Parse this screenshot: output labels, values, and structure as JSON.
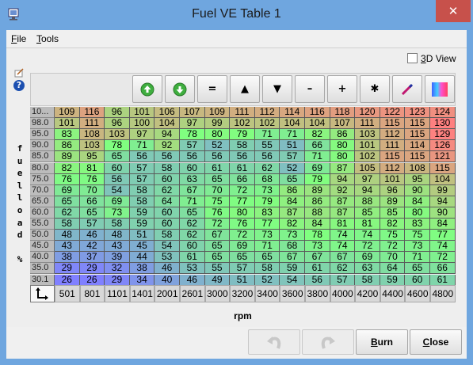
{
  "window": {
    "title": "Fuel VE Table 1",
    "close_glyph": "✕"
  },
  "menu": [
    {
      "accel": "F",
      "rest": "ile"
    },
    {
      "accel": "T",
      "rest": "ools"
    }
  ],
  "view3d": {
    "accel": "3",
    "rest": "D View",
    "checked": false
  },
  "help_glyph": "?",
  "toolbar": {
    "equals": "=",
    "up": "▲",
    "down": "▼",
    "minus": "–",
    "plus": "+",
    "multiply": "✱"
  },
  "axis": {
    "y_label": [
      "f",
      "u",
      "e",
      "l",
      "l",
      "o",
      "a",
      "d",
      "",
      "%"
    ],
    "x_label": "rpm",
    "rows": [
      "10...",
      "98.0",
      "95.0",
      "90.0",
      "85.0",
      "80.0",
      "75.0",
      "70.0",
      "65.0",
      "60.0",
      "55.0",
      "50.0",
      "45.0",
      "40.0",
      "35.0",
      "30.1"
    ],
    "cols": [
      "501",
      "801",
      "1101",
      "1401",
      "2001",
      "2601",
      "3000",
      "3200",
      "3400",
      "3600",
      "3800",
      "4000",
      "4200",
      "4400",
      "4600",
      "4800"
    ]
  },
  "table": [
    [
      109,
      116,
      96,
      101,
      106,
      107,
      109,
      111,
      112,
      114,
      116,
      118,
      120,
      122,
      123,
      124
    ],
    [
      101,
      111,
      96,
      100,
      104,
      97,
      99,
      102,
      102,
      104,
      104,
      107,
      111,
      115,
      115,
      130
    ],
    [
      83,
      108,
      103,
      97,
      94,
      78,
      80,
      79,
      71,
      71,
      82,
      86,
      103,
      112,
      115,
      129
    ],
    [
      86,
      103,
      78,
      71,
      92,
      57,
      52,
      58,
      55,
      51,
      66,
      80,
      101,
      111,
      114,
      126
    ],
    [
      89,
      95,
      65,
      56,
      56,
      56,
      56,
      56,
      56,
      57,
      71,
      80,
      102,
      115,
      115,
      121
    ],
    [
      82,
      81,
      60,
      57,
      58,
      60,
      61,
      61,
      62,
      52,
      69,
      87,
      105,
      112,
      108,
      115
    ],
    [
      76,
      76,
      56,
      57,
      60,
      63,
      65,
      66,
      68,
      65,
      79,
      94,
      97,
      101,
      95,
      104
    ],
    [
      69,
      70,
      54,
      58,
      62,
      67,
      70,
      72,
      73,
      86,
      89,
      92,
      94,
      96,
      90,
      99
    ],
    [
      65,
      66,
      69,
      58,
      64,
      71,
      75,
      77,
      79,
      84,
      86,
      87,
      88,
      89,
      84,
      94
    ],
    [
      62,
      65,
      73,
      59,
      60,
      65,
      76,
      80,
      83,
      87,
      88,
      87,
      85,
      85,
      80,
      90
    ],
    [
      58,
      57,
      58,
      59,
      60,
      62,
      72,
      76,
      77,
      82,
      84,
      81,
      81,
      82,
      83,
      84
    ],
    [
      48,
      46,
      48,
      51,
      58,
      62,
      67,
      72,
      73,
      73,
      78,
      74,
      74,
      75,
      75,
      77
    ],
    [
      43,
      42,
      43,
      45,
      54,
      60,
      65,
      69,
      71,
      68,
      73,
      74,
      72,
      72,
      73,
      74
    ],
    [
      38,
      37,
      39,
      44,
      53,
      61,
      65,
      65,
      65,
      67,
      67,
      67,
      69,
      70,
      71,
      72
    ],
    [
      29,
      29,
      32,
      38,
      46,
      53,
      55,
      57,
      58,
      59,
      61,
      62,
      63,
      64,
      65,
      66
    ],
    [
      26,
      26,
      29,
      34,
      40,
      46,
      49,
      51,
      52,
      54,
      56,
      57,
      58,
      59,
      60,
      61
    ]
  ],
  "color_scale": {
    "min": 26,
    "max": 130,
    "stops": [
      "#8080ff",
      "#80ff80",
      "#ff8080"
    ]
  },
  "buttons": {
    "burn": {
      "accel": "B",
      "rest": "urn"
    },
    "close": {
      "accel": "C",
      "rest": "lose"
    }
  }
}
